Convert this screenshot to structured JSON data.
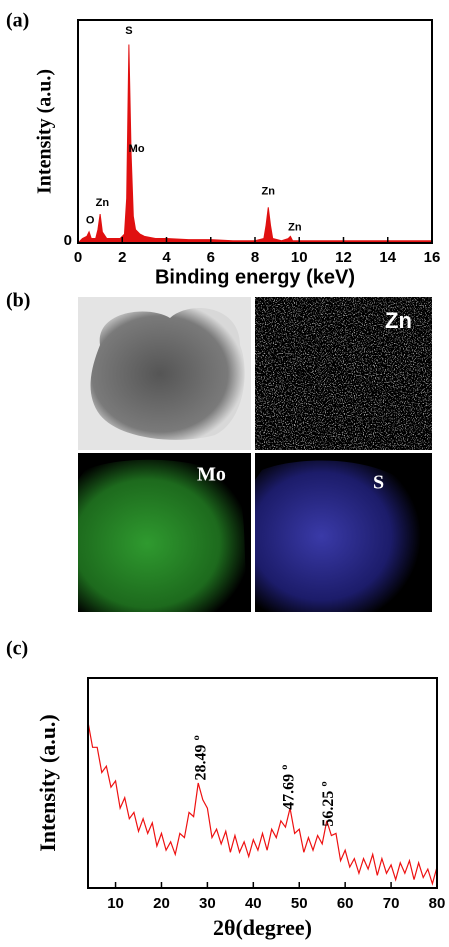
{
  "chart_data": [
    {
      "type": "area",
      "panel_label": "(a)",
      "y_label": "Intensity (a.u.)",
      "x_label": "Binding energy (keV)",
      "color": "#e01010",
      "x": [
        0,
        0.2,
        0.4,
        0.5,
        0.6,
        0.8,
        0.9,
        1.0,
        1.1,
        1.3,
        1.6,
        1.9,
        2.1,
        2.2,
        2.3,
        2.4,
        2.5,
        2.6,
        2.8,
        3.0,
        3.5,
        4,
        5,
        6,
        7,
        8,
        8.4,
        8.5,
        8.6,
        8.7,
        8.8,
        9.2,
        9.5,
        9.6,
        9.7,
        10,
        11,
        12,
        13,
        14,
        15,
        16
      ],
      "values": [
        0,
        2,
        3,
        5,
        2,
        2,
        6,
        13,
        5,
        2,
        2,
        2,
        4,
        20,
        89,
        40,
        12,
        6,
        4,
        3,
        2,
        2,
        1.5,
        1.5,
        1,
        1,
        2,
        8,
        16,
        8,
        2,
        1,
        2,
        3,
        1,
        1,
        1,
        1,
        1,
        1,
        1,
        1
      ],
      "annotations": [
        "S",
        "Mo",
        "Zn",
        "O",
        "Zn",
        "Zn"
      ],
      "xlim": [
        0,
        16
      ],
      "xticks": [
        0,
        2,
        4,
        6,
        8,
        10,
        12,
        14,
        16
      ],
      "ylim": [
        0,
        100
      ],
      "yticks": [
        0
      ]
    },
    {
      "type": "line",
      "panel_label": "(c)",
      "y_label": "Intensity (a.u.)",
      "x_label": "2θ(degree)",
      "color": "#ee1111",
      "x": [
        4,
        5,
        6,
        7,
        8,
        9,
        10,
        11,
        12,
        13,
        14,
        15,
        16,
        17,
        18,
        19,
        20,
        21,
        22,
        23,
        24,
        25,
        26,
        27,
        28,
        29,
        30,
        31,
        32,
        33,
        34,
        35,
        36,
        37,
        38,
        39,
        40,
        41,
        42,
        43,
        44,
        45,
        46,
        47,
        48,
        49,
        50,
        51,
        52,
        53,
        54,
        55,
        56,
        57,
        58,
        59,
        60,
        61,
        62,
        63,
        64,
        65,
        66,
        67,
        68,
        69,
        70,
        71,
        72,
        73,
        74,
        75,
        76,
        77,
        78,
        79,
        80
      ],
      "values": [
        79,
        67,
        67,
        55,
        58,
        48,
        51,
        38,
        43,
        33,
        36,
        27,
        33,
        26,
        31,
        20,
        26,
        18,
        22,
        16,
        26,
        24,
        36,
        34,
        50,
        42,
        38,
        24,
        28,
        21,
        27,
        17,
        25,
        17,
        22,
        15,
        23,
        18,
        26,
        18,
        28,
        24,
        32,
        29,
        38,
        26,
        28,
        17,
        24,
        18,
        25,
        21,
        32,
        25,
        26,
        13,
        18,
        10,
        14,
        7,
        14,
        9,
        16,
        6,
        14,
        7,
        11,
        4,
        12,
        7,
        13,
        4,
        12,
        5,
        9,
        2,
        10
      ],
      "annotations": [
        "28.49 º",
        "47.69 º",
        "56.25 º"
      ],
      "xlim": [
        4,
        80
      ],
      "xticks": [
        10,
        20,
        30,
        40,
        50,
        60,
        70,
        80
      ],
      "ylim": [
        0,
        100
      ]
    }
  ],
  "panel_b": {
    "label": "(b)",
    "maps": [
      "Zn",
      "Mo",
      "S"
    ]
  }
}
